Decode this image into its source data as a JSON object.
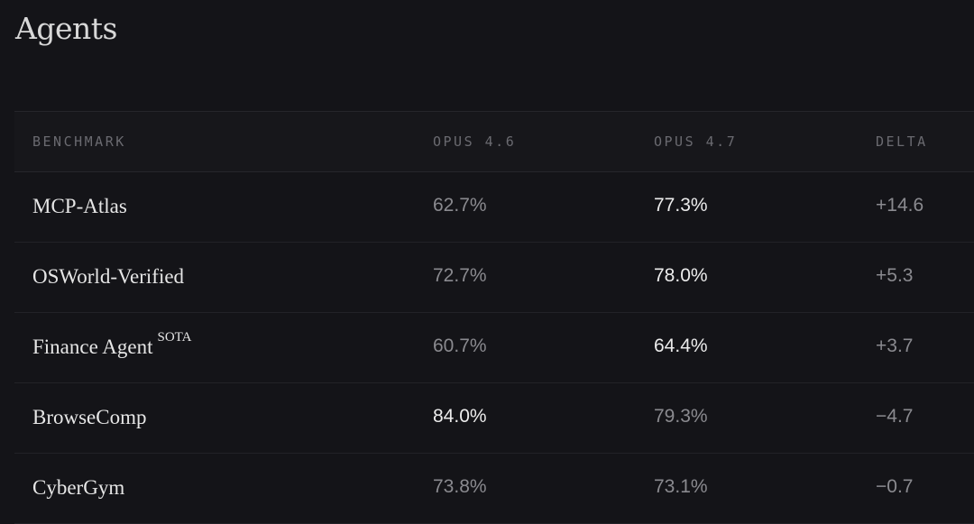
{
  "title": "Agents",
  "columns": [
    "BENCHMARK",
    "OPUS 4.6",
    "OPUS 4.7",
    "DELTA"
  ],
  "rows": [
    {
      "benchmark": "MCP-Atlas",
      "badge": "",
      "opus46": "62.7%",
      "opus47": "77.3%",
      "delta": "+14.6",
      "winner": "opus47"
    },
    {
      "benchmark": "OSWorld-Verified",
      "badge": "",
      "opus46": "72.7%",
      "opus47": "78.0%",
      "delta": "+5.3",
      "winner": "opus47"
    },
    {
      "benchmark": "Finance Agent",
      "badge": "SOTA",
      "opus46": "60.7%",
      "opus47": "64.4%",
      "delta": "+3.7",
      "winner": "opus47"
    },
    {
      "benchmark": "BrowseComp",
      "badge": "",
      "opus46": "84.0%",
      "opus47": "79.3%",
      "delta": "−4.7",
      "winner": "opus46"
    },
    {
      "benchmark": "CyberGym",
      "badge": "",
      "opus46": "73.8%",
      "opus47": "73.1%",
      "delta": "−0.7",
      "winner": "none"
    }
  ]
}
